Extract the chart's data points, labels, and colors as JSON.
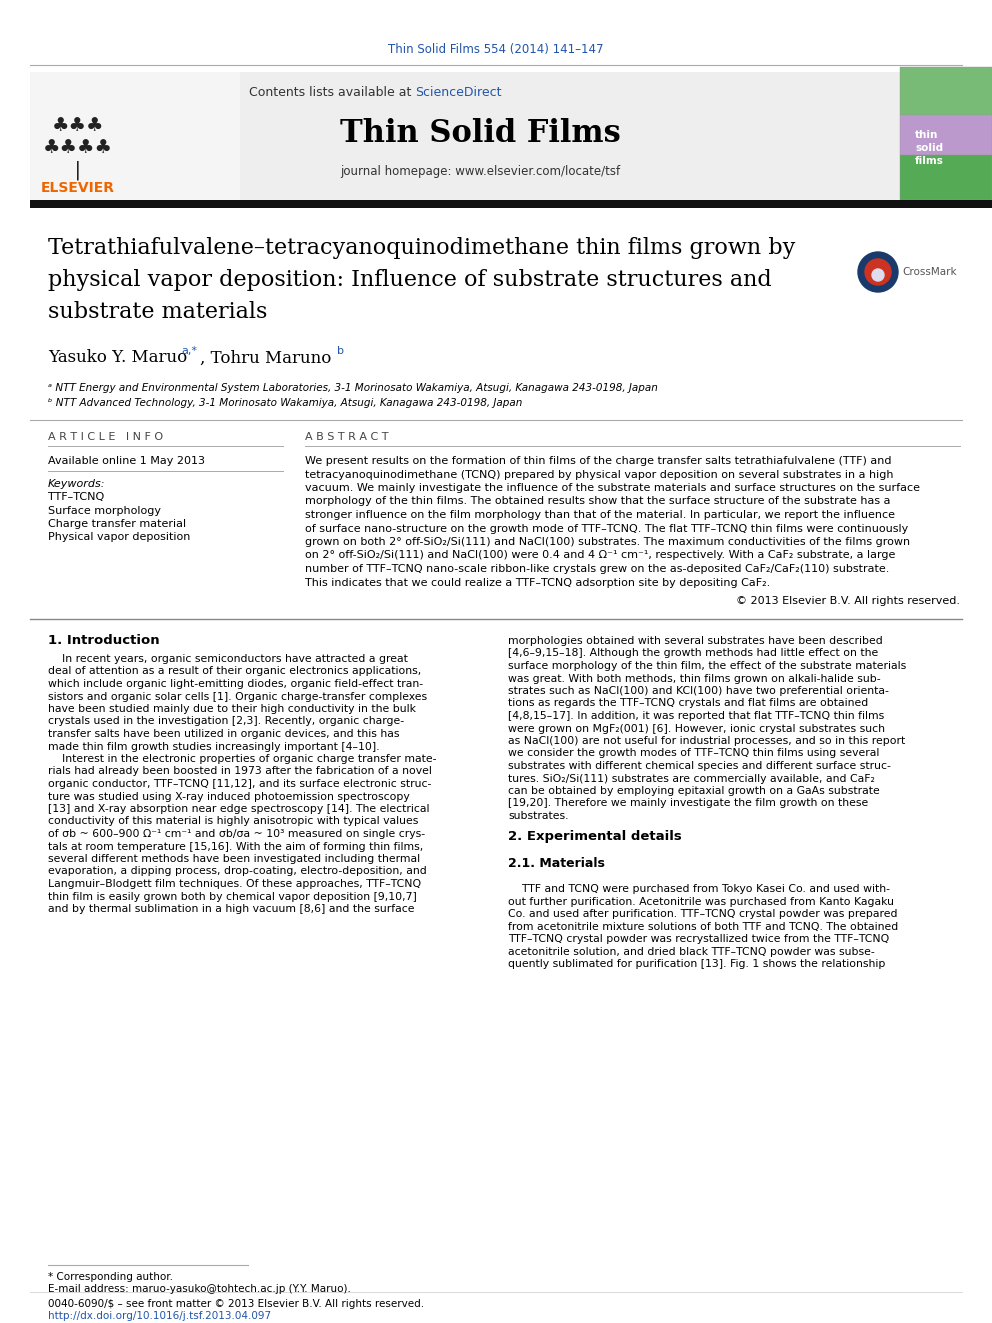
{
  "journal_ref": "Thin Solid Films 554 (2014) 141–147",
  "journal_ref_color": "#2255aa",
  "contents_text": "Contents lists available at ",
  "science_direct": "ScienceDirect",
  "science_direct_color": "#2255aa",
  "journal_name": "Thin Solid Films",
  "journal_homepage": "journal homepage: www.elsevier.com/locate/tsf",
  "title_line1": "Tetrathiafulvalene–tetracyanoquinodimethane thin films grown by",
  "title_line2": "physical vapor deposition: Influence of substrate structures and",
  "title_line3": "substrate materials",
  "authors": "Yasuko Y. Maruo ",
  "author_super1": "a,*",
  "author2": ", Tohru Maruno ",
  "author_super2": "b",
  "affil_a": "ᵃ NTT Energy and Environmental System Laboratories, 3-1 Morinosato Wakamiya, Atsugi, Kanagawa 243-0198, Japan",
  "affil_b": "ᵇ NTT Advanced Technology, 3-1 Morinosato Wakamiya, Atsugi, Kanagawa 243-0198, Japan",
  "article_info_header": "A R T I C L E   I N F O",
  "available_online": "Available online 1 May 2013",
  "keywords_header": "Keywords:",
  "keywords": [
    "TTF–TCNQ",
    "Surface morphology",
    "Charge transfer material",
    "Physical vapor deposition"
  ],
  "abstract_header": "A B S T R A C T",
  "abstract_lines": [
    "We present results on the formation of thin films of the charge transfer salts tetrathiafulvalene (TTF) and",
    "tetracyanoquinodimethane (TCNQ) prepared by physical vapor deposition on several substrates in a high",
    "vacuum. We mainly investigate the influence of the substrate materials and surface structures on the surface",
    "morphology of the thin films. The obtained results show that the surface structure of the substrate has a",
    "stronger influence on the film morphology than that of the material. In particular, we report the influence",
    "of surface nano-structure on the growth mode of TTF–TCNQ. The flat TTF–TCNQ thin films were continuously",
    "grown on both 2° off-SiO₂/Si(111) and NaCl(100) substrates. The maximum conductivities of the films grown",
    "on 2° off-SiO₂/Si(111) and NaCl(100) were 0.4 and 4 Ω⁻¹ cm⁻¹, respectively. With a CaF₂ substrate, a large",
    "number of TTF–TCNQ nano-scale ribbon-like crystals grew on the as-deposited CaF₂/CaF₂(110) substrate.",
    "This indicates that we could realize a TTF–TCNQ adsorption site by depositing CaF₂."
  ],
  "copyright": "© 2013 Elsevier B.V. All rights reserved.",
  "intro_header": "1. Introduction",
  "intro_col1_lines": [
    "    In recent years, organic semiconductors have attracted a great",
    "deal of attention as a result of their organic electronics applications,",
    "which include organic light-emitting diodes, organic field-effect tran-",
    "sistors and organic solar cells [1]. Organic charge-transfer complexes",
    "have been studied mainly due to their high conductivity in the bulk",
    "crystals used in the investigation [2,3]. Recently, organic charge-",
    "transfer salts have been utilized in organic devices, and this has",
    "made thin film growth studies increasingly important [4–10].",
    "    Interest in the electronic properties of organic charge transfer mate-",
    "rials had already been boosted in 1973 after the fabrication of a novel",
    "organic conductor, TTF–TCNQ [11,12], and its surface electronic struc-",
    "ture was studied using X-ray induced photoemission spectroscopy",
    "[13] and X-ray absorption near edge spectroscopy [14]. The electrical",
    "conductivity of this material is highly anisotropic with typical values",
    "of σb ~ 600–900 Ω⁻¹ cm⁻¹ and σb/σa ~ 10³ measured on single crys-",
    "tals at room temperature [15,16]. With the aim of forming thin films,",
    "several different methods have been investigated including thermal",
    "evaporation, a dipping process, drop-coating, electro-deposition, and",
    "Langmuir–Blodgett film techniques. Of these approaches, TTF–TCNQ",
    "thin film is easily grown both by chemical vapor deposition [9,10,7]",
    "and by thermal sublimation in a high vacuum [8,6] and the surface"
  ],
  "intro_col2_lines": [
    "morphologies obtained with several substrates have been described",
    "[4,6–9,15–18]. Although the growth methods had little effect on the",
    "surface morphology of the thin film, the effect of the substrate materials",
    "was great. With both methods, thin films grown on alkali-halide sub-",
    "strates such as NaCl(100) and KCl(100) have two preferential orienta-",
    "tions as regards the TTF–TCNQ crystals and flat films are obtained",
    "[4,8,15–17]. In addition, it was reported that flat TTF–TCNQ thin films",
    "were grown on MgF₂(001) [6]. However, ionic crystal substrates such",
    "as NaCl(100) are not useful for industrial processes, and so in this report",
    "we consider the growth modes of TTF–TCNQ thin films using several",
    "substrates with different chemical species and different surface struc-",
    "tures. SiO₂/Si(111) substrates are commercially available, and CaF₂",
    "can be obtained by employing epitaxial growth on a GaAs substrate",
    "[19,20]. Therefore we mainly investigate the film growth on these",
    "substrates.",
    "",
    "2. Experimental details",
    "",
    "2.1. Materials",
    "",
    "    TTF and TCNQ were purchased from Tokyo Kasei Co. and used with-",
    "out further purification. Acetonitrile was purchased from Kanto Kagaku",
    "Co. and used after purification. TTF–TCNQ crystal powder was prepared",
    "from acetonitrile mixture solutions of both TTF and TCNQ. The obtained",
    "TTF–TCNQ crystal powder was recrystallized twice from the TTF–TCNQ",
    "acetonitrile solution, and dried black TTF–TCNQ powder was subse-",
    "quently sublimated for purification [13]. Fig. 1 shows the relationship"
  ],
  "footnote_star": "* Corresponding author.",
  "footnote_email": "E-mail address: maruo-yasuko@tohtech.ac.jp (Y.Y. Maruo).",
  "footer_issn": "0040-6090/$ – see front matter © 2013 Elsevier B.V. All rights reserved.",
  "footer_doi": "http://dx.doi.org/10.1016/j.tsf.2013.04.097",
  "bg_color": "#ffffff",
  "link_color": "#2255aa",
  "text_color": "#000000"
}
